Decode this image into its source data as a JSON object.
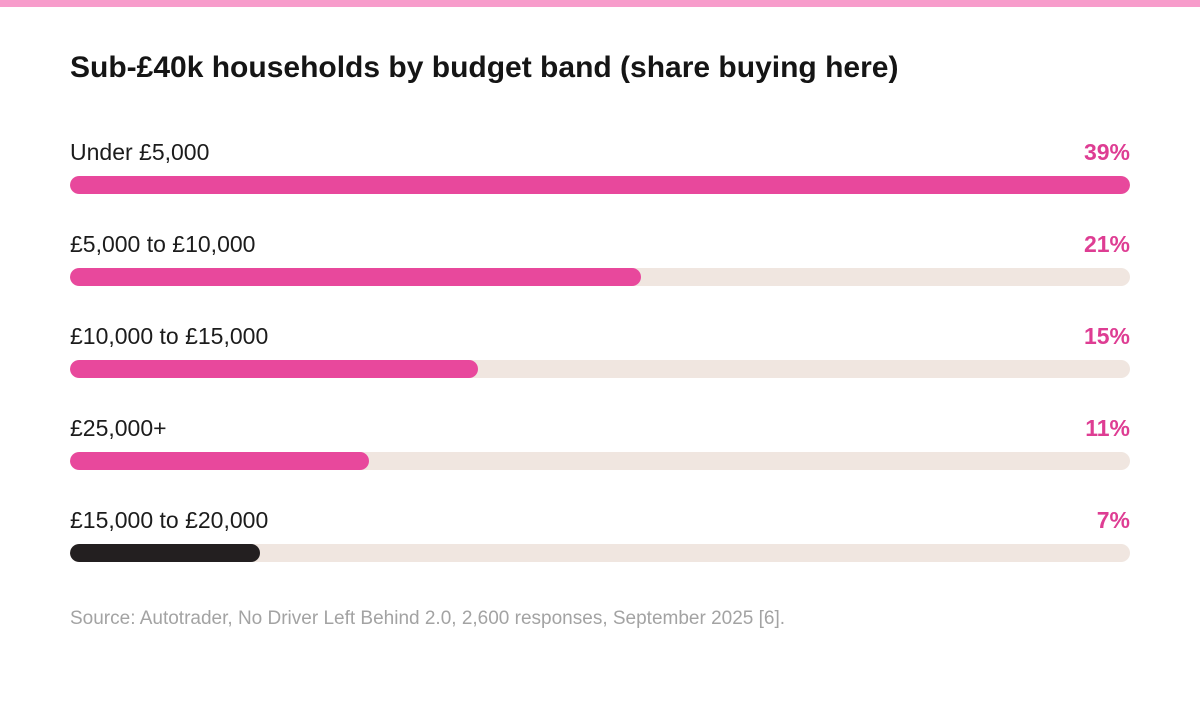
{
  "chart_data": {
    "type": "bar",
    "orientation": "horizontal",
    "title": "Sub-£40k households by budget band (share buying here)",
    "categories": [
      "Under £5,000",
      "£5,000 to £10,000",
      "£10,000 to £15,000",
      "£25,000+",
      "£15,000 to £20,000"
    ],
    "values": [
      39,
      21,
      15,
      11,
      7
    ],
    "value_labels": [
      "39%",
      "21%",
      "15%",
      "11%",
      "7%"
    ],
    "unit": "%",
    "xlim": [
      0,
      39
    ],
    "grid": false,
    "legend": "none",
    "highlight_index": 4
  },
  "source": "Source: Autotrader, No Driver Left Behind 2.0, 2,600 responses, September 2025 [6].",
  "colors": {
    "accent_stripe": "#f79ccb",
    "bar_fill": "#e8489c",
    "bar_highlight": "#231f20",
    "track": "#f0e6e0",
    "value_text": "#de3d93",
    "label_text": "#1c1c1c",
    "source_text": "#a3a3a3"
  }
}
